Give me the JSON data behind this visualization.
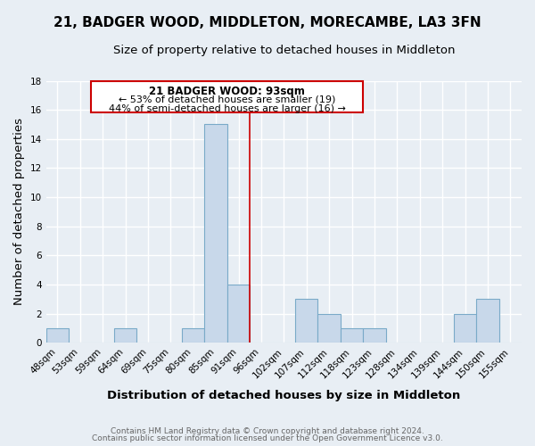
{
  "title": "21, BADGER WOOD, MIDDLETON, MORECAMBE, LA3 3FN",
  "subtitle": "Size of property relative to detached houses in Middleton",
  "xlabel": "Distribution of detached houses by size in Middleton",
  "ylabel": "Number of detached properties",
  "bin_labels": [
    "48sqm",
    "53sqm",
    "59sqm",
    "64sqm",
    "69sqm",
    "75sqm",
    "80sqm",
    "85sqm",
    "91sqm",
    "96sqm",
    "102sqm",
    "107sqm",
    "112sqm",
    "118sqm",
    "123sqm",
    "128sqm",
    "134sqm",
    "139sqm",
    "144sqm",
    "150sqm",
    "155sqm"
  ],
  "bar_heights": [
    1,
    0,
    0,
    1,
    0,
    0,
    1,
    15,
    4,
    0,
    0,
    3,
    2,
    1,
    1,
    0,
    0,
    0,
    2,
    3,
    0
  ],
  "bar_color": "#c8d8ea",
  "bar_edge_color": "#7aaac8",
  "subject_line_color": "#cc0000",
  "ylim": [
    0,
    18
  ],
  "yticks": [
    0,
    2,
    4,
    6,
    8,
    10,
    12,
    14,
    16,
    18
  ],
  "annotation_title": "21 BADGER WOOD: 93sqm",
  "annotation_line1": "← 53% of detached houses are smaller (19)",
  "annotation_line2": "44% of semi-detached houses are larger (16) →",
  "annotation_box_color": "#ffffff",
  "annotation_box_edge": "#cc0000",
  "footer_line1": "Contains HM Land Registry data © Crown copyright and database right 2024.",
  "footer_line2": "Contains public sector information licensed under the Open Government Licence v3.0.",
  "background_color": "#e8eef4",
  "grid_color": "#ffffff",
  "title_fontsize": 11,
  "subtitle_fontsize": 9.5,
  "axis_label_fontsize": 9.5,
  "tick_fontsize": 7.5,
  "annotation_title_fontsize": 8.5,
  "annotation_text_fontsize": 8,
  "footer_fontsize": 6.5
}
